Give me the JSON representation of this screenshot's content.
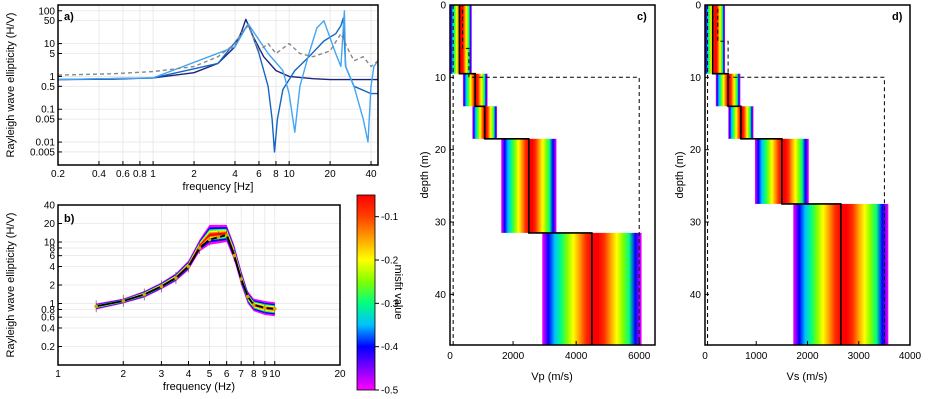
{
  "chart_data": [
    {
      "panel": "a)",
      "type": "line",
      "xlabel": "frequency [Hz]",
      "ylabel": "Rayleigh wave ellipticity (H/V)",
      "xscale": "log",
      "yscale": "log",
      "xlim": [
        0.2,
        45
      ],
      "ylim": [
        0.002,
        150
      ],
      "xticks": [
        0.2,
        0.4,
        0.6,
        0.8,
        1,
        2,
        4,
        6,
        8,
        10,
        20,
        40
      ],
      "xtick_labels": [
        "0.2",
        "0.4",
        "0.6",
        "0.8",
        "1",
        "2",
        "4",
        "6",
        "8",
        "10",
        "20",
        "40"
      ],
      "yticks": [
        0.005,
        0.01,
        0.05,
        0.1,
        0.5,
        1,
        5,
        10,
        50,
        100
      ],
      "ytick_labels": [
        "0.005",
        "0.01",
        "0.05",
        "0.1",
        "0.5",
        "1",
        "5",
        "10",
        "50",
        "100"
      ],
      "grid": true,
      "series": [
        {
          "color": "#1a237e",
          "x": [
            0.2,
            0.5,
            1,
            2,
            3,
            4,
            4.5,
            4.8,
            5.5,
            6.5,
            8,
            10,
            15,
            20,
            30,
            45
          ],
          "y": [
            0.8,
            0.82,
            0.9,
            1.3,
            2.5,
            8,
            25,
            55,
            15,
            4,
            1.5,
            1,
            0.85,
            0.8,
            0.8,
            0.8
          ]
        },
        {
          "color": "#1565c0",
          "x": [
            0.2,
            1,
            3,
            4.5,
            5,
            6,
            7,
            7.5,
            7.8,
            8.2,
            9,
            11,
            14,
            18,
            22,
            24,
            25,
            26,
            30,
            40,
            45
          ],
          "y": [
            0.8,
            0.9,
            2.5,
            20,
            40,
            5,
            0.5,
            0.05,
            0.005,
            0.05,
            0.4,
            1.5,
            4,
            12,
            20,
            35,
            60,
            2,
            0.5,
            0.3,
            0.3
          ]
        },
        {
          "color": "#42a5f5",
          "x": [
            0.2,
            1,
            4,
            5,
            7,
            9,
            10,
            11,
            12,
            14,
            16,
            18,
            22,
            24,
            25,
            25.5,
            26,
            30,
            35,
            38,
            40,
            42,
            45
          ],
          "y": [
            0.8,
            0.9,
            8,
            40,
            5,
            1.5,
            0.3,
            0.02,
            0.5,
            5,
            30,
            50,
            5,
            2,
            30,
            100,
            2,
            0.5,
            0.05,
            0.01,
            0.5,
            2,
            3
          ]
        },
        {
          "color": "#888888",
          "dashed": true,
          "x": [
            0.2,
            0.5,
            1,
            2,
            3,
            4,
            4.5,
            5,
            5.5,
            6,
            7,
            8,
            10,
            12,
            15,
            20,
            24,
            27,
            30,
            35,
            40,
            45
          ],
          "y": [
            1.1,
            1.2,
            1.4,
            2,
            4,
            10,
            22,
            35,
            14,
            6,
            10,
            5,
            10,
            5,
            4,
            6,
            20,
            7,
            3,
            4,
            2,
            3
          ]
        }
      ]
    },
    {
      "panel": "b)",
      "type": "line",
      "xlabel": "frequency (Hz)",
      "ylabel": "Rayleigh wave ellipticity (H/V)",
      "xscale": "log",
      "yscale": "log",
      "xlim": [
        1,
        20
      ],
      "ylim": [
        0.1,
        40
      ],
      "xticks": [
        1,
        2,
        3,
        4,
        5,
        6,
        7,
        8,
        9,
        10,
        20
      ],
      "xtick_labels": [
        "1",
        "2",
        "3",
        "4",
        "5",
        "6",
        "7",
        "8",
        "9",
        "10",
        "20"
      ],
      "yticks": [
        0.2,
        0.4,
        0.6,
        0.8,
        1,
        2,
        4,
        6,
        8,
        10,
        20,
        40
      ],
      "ytick_labels": [
        "0.2",
        "0.4",
        "0.6",
        "0.8",
        "1",
        "2",
        "4",
        "6",
        "8",
        "10",
        "20",
        "40"
      ],
      "grid": true,
      "observed": {
        "x": [
          1.5,
          2,
          2.5,
          3,
          3.5,
          4,
          4.5,
          5,
          5.5,
          6,
          6.5,
          7,
          7.5,
          8,
          9,
          10
        ],
        "y": [
          0.9,
          1.1,
          1.4,
          1.9,
          2.6,
          4,
          8,
          11,
          12,
          13,
          6,
          2.5,
          1.3,
          0.95,
          0.85,
          0.82
        ]
      },
      "fit_band": {
        "x": [
          1.5,
          2,
          2.5,
          3,
          3.5,
          4,
          4.5,
          5,
          5.5,
          6,
          6.5,
          7,
          7.5,
          8,
          9,
          10
        ],
        "y_low": [
          0.8,
          1.0,
          1.25,
          1.7,
          2.3,
          3.5,
          7,
          9,
          9.5,
          10,
          5,
          2,
          1.0,
          0.75,
          0.65,
          0.62
        ],
        "y_high": [
          1.0,
          1.2,
          1.6,
          2.2,
          3.1,
          5,
          11,
          19,
          19,
          19,
          9,
          3.5,
          1.6,
          1.2,
          1.1,
          1.05
        ]
      }
    },
    {
      "panel": "c)",
      "type": "line",
      "xlabel": "Vp (m/s)",
      "ylabel": "depth (m)",
      "xlim": [
        0,
        6500
      ],
      "ylim": [
        47,
        0
      ],
      "xticks": [
        0,
        2000,
        4000,
        6000
      ],
      "xtick_labels": [
        "0",
        "2000",
        "4000",
        "6000"
      ],
      "yticks": [
        0,
        10,
        20,
        30,
        40
      ],
      "ytick_labels": [
        "0",
        "10",
        "20",
        "30",
        "40"
      ],
      "best_profile": {
        "v": [
          300,
          300,
          800,
          800,
          1100,
          1100,
          2500,
          2500,
          4500,
          4500
        ],
        "depth": [
          0,
          9.5,
          9.5,
          14,
          14,
          18.5,
          18.5,
          31.5,
          31.5,
          47
        ]
      },
      "search_limits": {
        "v": [
          100,
          400,
          400,
          600,
          600,
          6000,
          6000
        ],
        "depth": [
          0,
          0,
          6,
          6,
          10,
          10,
          47
        ]
      }
    },
    {
      "panel": "d)",
      "type": "line",
      "xlabel": "Vs (m/s)",
      "ylabel": "depth (m)",
      "xlim": [
        0,
        4000
      ],
      "ylim": [
        47,
        0
      ],
      "xticks": [
        0,
        1000,
        2000,
        3000,
        4000
      ],
      "xtick_labels": [
        "0",
        "1000",
        "2000",
        "3000",
        "4000"
      ],
      "yticks": [
        0,
        10,
        20,
        30,
        40
      ],
      "ytick_labels": [
        "0",
        "10",
        "20",
        "30",
        "40"
      ],
      "best_profile": {
        "v": [
          150,
          150,
          450,
          450,
          700,
          700,
          1500,
          1500,
          2650,
          2650
        ],
        "depth": [
          0,
          9.5,
          9.5,
          14,
          14,
          18.5,
          18.5,
          27.5,
          27.5,
          47
        ]
      },
      "search_limits": {
        "v": [
          50,
          250,
          250,
          450,
          450,
          3500,
          3500
        ],
        "depth": [
          0,
          0,
          5,
          5,
          10,
          10,
          47
        ]
      }
    },
    {
      "type": "colorbar",
      "label": "misfit value",
      "ticks": [
        -0.1,
        -0.2,
        -0.3,
        -0.4,
        -0.5
      ],
      "tick_labels": [
        "-0.1",
        "-0.2",
        "-0.3",
        "-0.4",
        "-0.5"
      ],
      "range": [
        -0.5,
        -0.05
      ],
      "colors": [
        "#ff00ff",
        "#8000ff",
        "#0000ff",
        "#00c0ff",
        "#00ff80",
        "#80ff00",
        "#ffff00",
        "#ffa000",
        "#ff4000",
        "#ff0000"
      ]
    }
  ]
}
